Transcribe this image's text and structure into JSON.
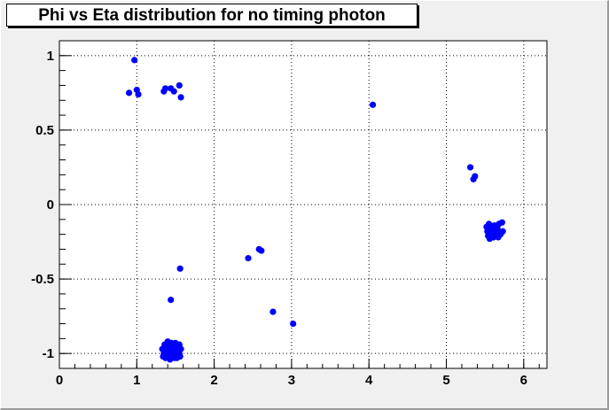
{
  "chart_data": {
    "type": "scatter",
    "title": "Phi vs Eta distribution for no timing photon",
    "xlabel": "",
    "ylabel": "",
    "xlim": [
      0,
      6.3
    ],
    "ylim": [
      -1.1,
      1.1
    ],
    "x_ticks": [
      "0",
      "1",
      "2",
      "3",
      "4",
      "5",
      "6"
    ],
    "y_ticks": [
      "-1",
      "-0.5",
      "0",
      "0.5",
      "1"
    ],
    "grid": true,
    "series": [
      {
        "color": "#0000ff",
        "points": [
          [
            0.97,
            0.97
          ],
          [
            0.9,
            0.75
          ],
          [
            1.0,
            0.77
          ],
          [
            1.02,
            0.74
          ],
          [
            1.35,
            0.76
          ],
          [
            1.37,
            0.78
          ],
          [
            1.44,
            0.78
          ],
          [
            1.48,
            0.76
          ],
          [
            1.55,
            0.8
          ],
          [
            1.57,
            0.72
          ],
          [
            1.56,
            -0.43
          ],
          [
            1.44,
            -0.64
          ],
          [
            4.05,
            0.67
          ],
          [
            5.31,
            0.25
          ],
          [
            5.35,
            0.17
          ],
          [
            5.37,
            0.19
          ],
          [
            2.44,
            -0.36
          ],
          [
            2.58,
            -0.3
          ],
          [
            2.61,
            -0.31
          ],
          [
            2.76,
            -0.72
          ],
          [
            3.02,
            -0.8
          ],
          [
            5.52,
            -0.15
          ],
          [
            5.55,
            -0.13
          ],
          [
            5.58,
            -0.17
          ],
          [
            5.6,
            -0.19
          ],
          [
            5.62,
            -0.14
          ],
          [
            5.64,
            -0.21
          ],
          [
            5.66,
            -0.16
          ],
          [
            5.68,
            -0.13
          ],
          [
            5.7,
            -0.2
          ],
          [
            5.72,
            -0.12
          ],
          [
            5.54,
            -0.21
          ],
          [
            5.56,
            -0.23
          ],
          [
            5.61,
            -0.22
          ],
          [
            5.67,
            -0.22
          ],
          [
            5.73,
            -0.18
          ],
          [
            5.53,
            -0.18
          ],
          [
            5.59,
            -0.15
          ],
          [
            5.65,
            -0.17
          ],
          [
            1.33,
            -0.97
          ],
          [
            1.35,
            -1.0
          ],
          [
            1.36,
            -0.94
          ],
          [
            1.38,
            -0.98
          ],
          [
            1.4,
            -0.92
          ],
          [
            1.41,
            -1.02
          ],
          [
            1.42,
            -0.96
          ],
          [
            1.43,
            -1.04
          ],
          [
            1.45,
            -0.99
          ],
          [
            1.46,
            -0.95
          ],
          [
            1.47,
            -1.01
          ],
          [
            1.48,
            -0.97
          ],
          [
            1.5,
            -0.93
          ],
          [
            1.51,
            -1.0
          ],
          [
            1.52,
            -1.03
          ],
          [
            1.53,
            -0.96
          ],
          [
            1.54,
            -0.99
          ],
          [
            1.55,
            -0.94
          ],
          [
            1.56,
            -1.02
          ],
          [
            1.57,
            -0.97
          ],
          [
            1.34,
            -1.02
          ],
          [
            1.37,
            -1.03
          ],
          [
            1.39,
            -1.0
          ],
          [
            1.44,
            -1.02
          ],
          [
            1.49,
            -1.03
          ],
          [
            1.36,
            -0.99
          ],
          [
            1.42,
            -0.99
          ],
          [
            1.5,
            -0.98
          ],
          [
            1.55,
            -1.0
          ],
          [
            1.39,
            -0.95
          ],
          [
            1.45,
            -0.93
          ],
          [
            1.52,
            -0.95
          ]
        ]
      }
    ]
  }
}
